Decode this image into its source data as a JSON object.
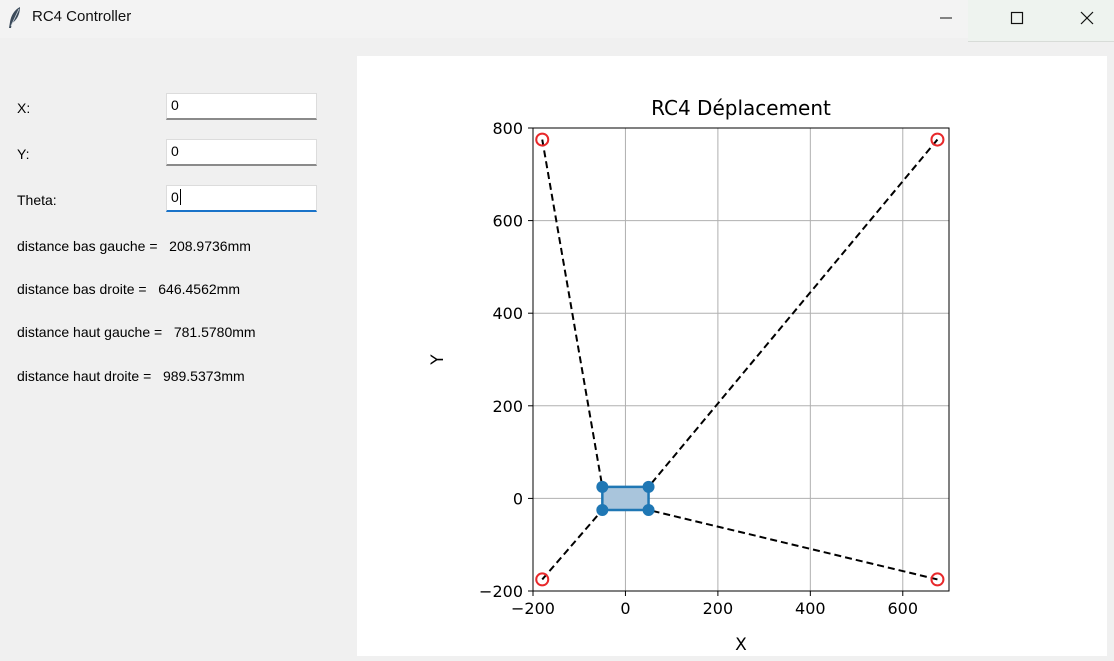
{
  "window": {
    "title": "RC4 Controller",
    "icon": "feather-icon",
    "controls": [
      "minimize-icon",
      "maximize-icon",
      "close-icon"
    ]
  },
  "form": {
    "x_label": "X:",
    "x_value": "0",
    "y_label": "Y:",
    "y_value": "0",
    "theta_label": "Theta:",
    "theta_value": "0",
    "distances": [
      {
        "label": "distance bas gauche = ",
        "value": "208.9736mm"
      },
      {
        "label": "distance bas droite = ",
        "value": "646.4562mm"
      },
      {
        "label": "distance haut gauche = ",
        "value": "781.5780mm"
      },
      {
        "label": "distance haut droite = ",
        "value": "989.5373mm"
      }
    ]
  },
  "chart_data": {
    "type": "scatter",
    "title": "RC4 Déplacement",
    "xlabel": "X",
    "ylabel": "Y",
    "xlim": [
      -200,
      700
    ],
    "ylim": [
      -200,
      800
    ],
    "xticks": [
      "−200",
      "0",
      "200",
      "400",
      "600"
    ],
    "yticks": [
      "−200",
      "0",
      "200",
      "400",
      "600",
      "800"
    ],
    "xtick_values": [
      -200,
      0,
      200,
      400,
      600
    ],
    "ytick_values": [
      -200,
      0,
      200,
      400,
      600,
      800
    ],
    "grid": true,
    "anchors": [
      {
        "name": "bas gauche",
        "x": -180,
        "y": -175
      },
      {
        "name": "bas droite",
        "x": 675,
        "y": -175
      },
      {
        "name": "haut gauche",
        "x": -180,
        "y": 775
      },
      {
        "name": "haut droite",
        "x": 675,
        "y": 775
      }
    ],
    "robot_corners": [
      {
        "name": "bas gauche",
        "x": -50,
        "y": -25
      },
      {
        "name": "bas droite",
        "x": 50,
        "y": -25
      },
      {
        "name": "haut gauche",
        "x": -50,
        "y": 25
      },
      {
        "name": "haut droite",
        "x": 50,
        "y": 25
      }
    ],
    "colors": {
      "anchor": "#e8282a",
      "robot": "#1f77b4",
      "robot_fill": "#a9c5dc",
      "cable": "#000000",
      "grid": "#b0b0b0"
    }
  }
}
